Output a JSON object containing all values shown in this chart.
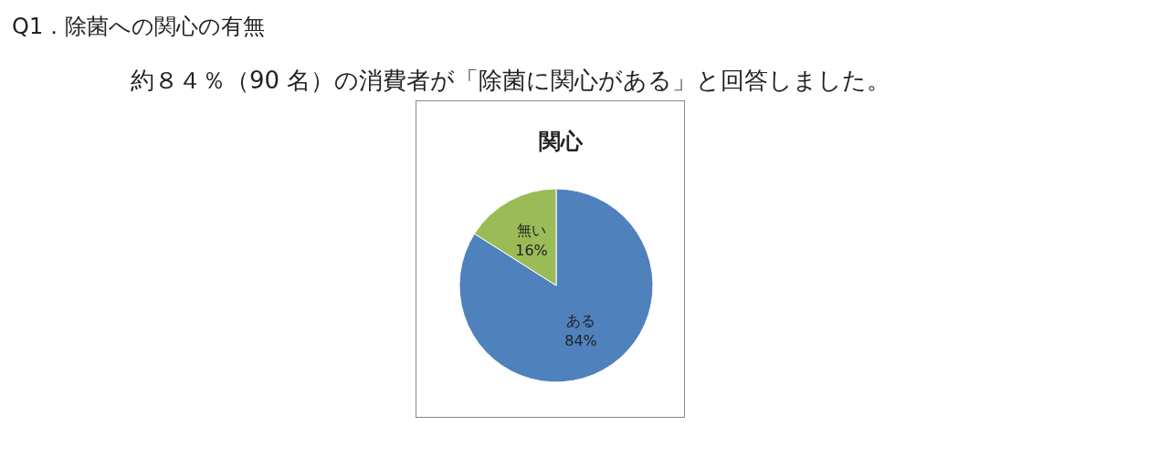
{
  "chart_data": {
    "type": "pie",
    "title": "Q1．除菌への関心の有無",
    "subtitle": "約８４％（90 名）の消費者が「除菌に関心がある」と回答しました。",
    "annotations": [
      "関心"
    ],
    "categories": [
      "ある",
      "無い"
    ],
    "values": [
      84,
      16
    ],
    "colors": [
      "#4f81bd",
      "#9bbb59"
    ],
    "value_labels": [
      "84%",
      "16%"
    ],
    "legend": false
  }
}
